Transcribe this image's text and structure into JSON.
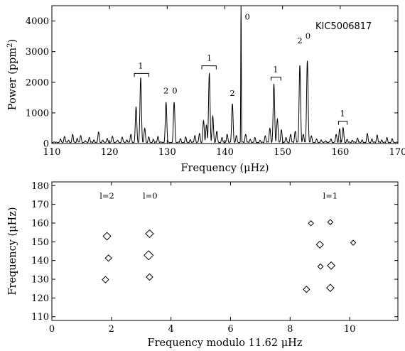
{
  "chart_data": [
    {
      "type": "line",
      "star": "KIC5006817",
      "xlabel": "Frequency (μHz)",
      "ylabel": "Power (ppm²)",
      "xlim": [
        110,
        170
      ],
      "ylim": [
        0,
        4500
      ],
      "x_ticks": [
        110,
        120,
        130,
        140,
        150,
        160,
        170
      ],
      "y_ticks": [
        0,
        1000,
        2000,
        3000,
        4000
      ],
      "grid": false,
      "peaks": [
        {
          "x": 111.5,
          "y": 150
        },
        {
          "x": 112.2,
          "y": 230
        },
        {
          "x": 112.9,
          "y": 110
        },
        {
          "x": 113.6,
          "y": 300
        },
        {
          "x": 114.4,
          "y": 170
        },
        {
          "x": 115.0,
          "y": 260
        },
        {
          "x": 115.8,
          "y": 90
        },
        {
          "x": 116.5,
          "y": 200
        },
        {
          "x": 117.3,
          "y": 120
        },
        {
          "x": 118.1,
          "y": 380
        },
        {
          "x": 118.8,
          "y": 110
        },
        {
          "x": 119.6,
          "y": 170
        },
        {
          "x": 120.5,
          "y": 240
        },
        {
          "x": 121.4,
          "y": 110
        },
        {
          "x": 122.2,
          "y": 210
        },
        {
          "x": 123.0,
          "y": 120
        },
        {
          "x": 123.7,
          "y": 300
        },
        {
          "x": 124.6,
          "y": 1200
        },
        {
          "x": 125.4,
          "y": 2150
        },
        {
          "x": 126.1,
          "y": 500
        },
        {
          "x": 126.8,
          "y": 220
        },
        {
          "x": 127.6,
          "y": 140
        },
        {
          "x": 128.4,
          "y": 230
        },
        {
          "x": 129.8,
          "y": 1350
        },
        {
          "x": 131.2,
          "y": 1350
        },
        {
          "x": 132.3,
          "y": 160
        },
        {
          "x": 133.2,
          "y": 220
        },
        {
          "x": 134.0,
          "y": 130
        },
        {
          "x": 134.8,
          "y": 260
        },
        {
          "x": 135.6,
          "y": 330
        },
        {
          "x": 136.3,
          "y": 750
        },
        {
          "x": 136.8,
          "y": 600
        },
        {
          "x": 137.3,
          "y": 2300
        },
        {
          "x": 137.9,
          "y": 900
        },
        {
          "x": 138.6,
          "y": 400
        },
        {
          "x": 139.5,
          "y": 200
        },
        {
          "x": 140.4,
          "y": 300
        },
        {
          "x": 141.3,
          "y": 1300
        },
        {
          "x": 142.0,
          "y": 260
        },
        {
          "x": 142.8,
          "y": 4500
        },
        {
          "x": 143.6,
          "y": 300
        },
        {
          "x": 144.4,
          "y": 140
        },
        {
          "x": 145.2,
          "y": 200
        },
        {
          "x": 146.1,
          "y": 110
        },
        {
          "x": 147.0,
          "y": 250
        },
        {
          "x": 147.8,
          "y": 500
        },
        {
          "x": 148.5,
          "y": 1950
        },
        {
          "x": 149.1,
          "y": 800
        },
        {
          "x": 149.8,
          "y": 450
        },
        {
          "x": 150.6,
          "y": 200
        },
        {
          "x": 151.4,
          "y": 300
        },
        {
          "x": 152.2,
          "y": 400
        },
        {
          "x": 153.0,
          "y": 2550
        },
        {
          "x": 153.6,
          "y": 300
        },
        {
          "x": 154.3,
          "y": 2700
        },
        {
          "x": 155.0,
          "y": 250
        },
        {
          "x": 155.9,
          "y": 150
        },
        {
          "x": 156.7,
          "y": 120
        },
        {
          "x": 157.5,
          "y": 90
        },
        {
          "x": 158.4,
          "y": 150
        },
        {
          "x": 159.3,
          "y": 300
        },
        {
          "x": 159.9,
          "y": 480
        },
        {
          "x": 160.5,
          "y": 520
        },
        {
          "x": 161.2,
          "y": 140
        },
        {
          "x": 162.1,
          "y": 110
        },
        {
          "x": 163.0,
          "y": 180
        },
        {
          "x": 163.8,
          "y": 120
        },
        {
          "x": 164.7,
          "y": 330
        },
        {
          "x": 165.5,
          "y": 150
        },
        {
          "x": 166.4,
          "y": 280
        },
        {
          "x": 167.2,
          "y": 120
        },
        {
          "x": 168.1,
          "y": 200
        },
        {
          "x": 169.0,
          "y": 160
        }
      ],
      "annotations": [
        {
          "text": "1",
          "x": 125.4,
          "y": 2450,
          "bracket": [
            124.3,
            126.8
          ]
        },
        {
          "text": "2",
          "x": 129.8,
          "y": 1630
        },
        {
          "text": "0",
          "x": 131.3,
          "y": 1630
        },
        {
          "text": "1",
          "x": 137.3,
          "y": 2700,
          "bracket": [
            136.0,
            138.5
          ]
        },
        {
          "text": "2",
          "x": 141.3,
          "y": 1550
        },
        {
          "text": "0",
          "x": 143.9,
          "y": 4050
        },
        {
          "text": "1",
          "x": 148.8,
          "y": 2330,
          "bracket": [
            148.0,
            149.7
          ]
        },
        {
          "text": "2",
          "x": 153.0,
          "y": 3270
        },
        {
          "text": "0",
          "x": 154.4,
          "y": 3420
        },
        {
          "text": "1",
          "x": 160.4,
          "y": 890,
          "bracket": [
            159.7,
            161.2
          ]
        }
      ]
    },
    {
      "type": "scatter",
      "xlabel": "Frequency modulo 11.62 μHz",
      "ylabel": "Frequency (μHz)",
      "xlim": [
        0,
        11.62
      ],
      "ylim": [
        108,
        182
      ],
      "x_ticks": [
        0,
        2,
        4,
        6,
        8,
        10
      ],
      "y_ticks": [
        110,
        120,
        130,
        140,
        150,
        160,
        170,
        180
      ],
      "marker": "diamond",
      "grid": false,
      "points": [
        {
          "x": 1.85,
          "y": 153.0,
          "power": 2550
        },
        {
          "x": 1.9,
          "y": 141.3,
          "power": 1300
        },
        {
          "x": 1.8,
          "y": 129.8,
          "power": 1350
        },
        {
          "x": 3.28,
          "y": 154.3,
          "power": 2700
        },
        {
          "x": 3.25,
          "y": 142.8,
          "power": 4500
        },
        {
          "x": 3.28,
          "y": 131.2,
          "power": 1350
        },
        {
          "x": 8.55,
          "y": 124.6,
          "power": 1200
        },
        {
          "x": 9.35,
          "y": 125.4,
          "power": 2150
        },
        {
          "x": 9.02,
          "y": 136.8,
          "power": 600
        },
        {
          "x": 9.38,
          "y": 137.3,
          "power": 2300
        },
        {
          "x": 9.0,
          "y": 148.5,
          "power": 1950
        },
        {
          "x": 10.12,
          "y": 149.5,
          "power": 450
        },
        {
          "x": 8.7,
          "y": 159.9,
          "power": 480
        },
        {
          "x": 9.35,
          "y": 160.5,
          "power": 520
        }
      ],
      "group_labels": [
        {
          "text": "l=2",
          "x": 1.85,
          "y": 173
        },
        {
          "text": "l=0",
          "x": 3.3,
          "y": 173
        },
        {
          "text": "l=1",
          "x": 9.35,
          "y": 173
        }
      ]
    }
  ]
}
